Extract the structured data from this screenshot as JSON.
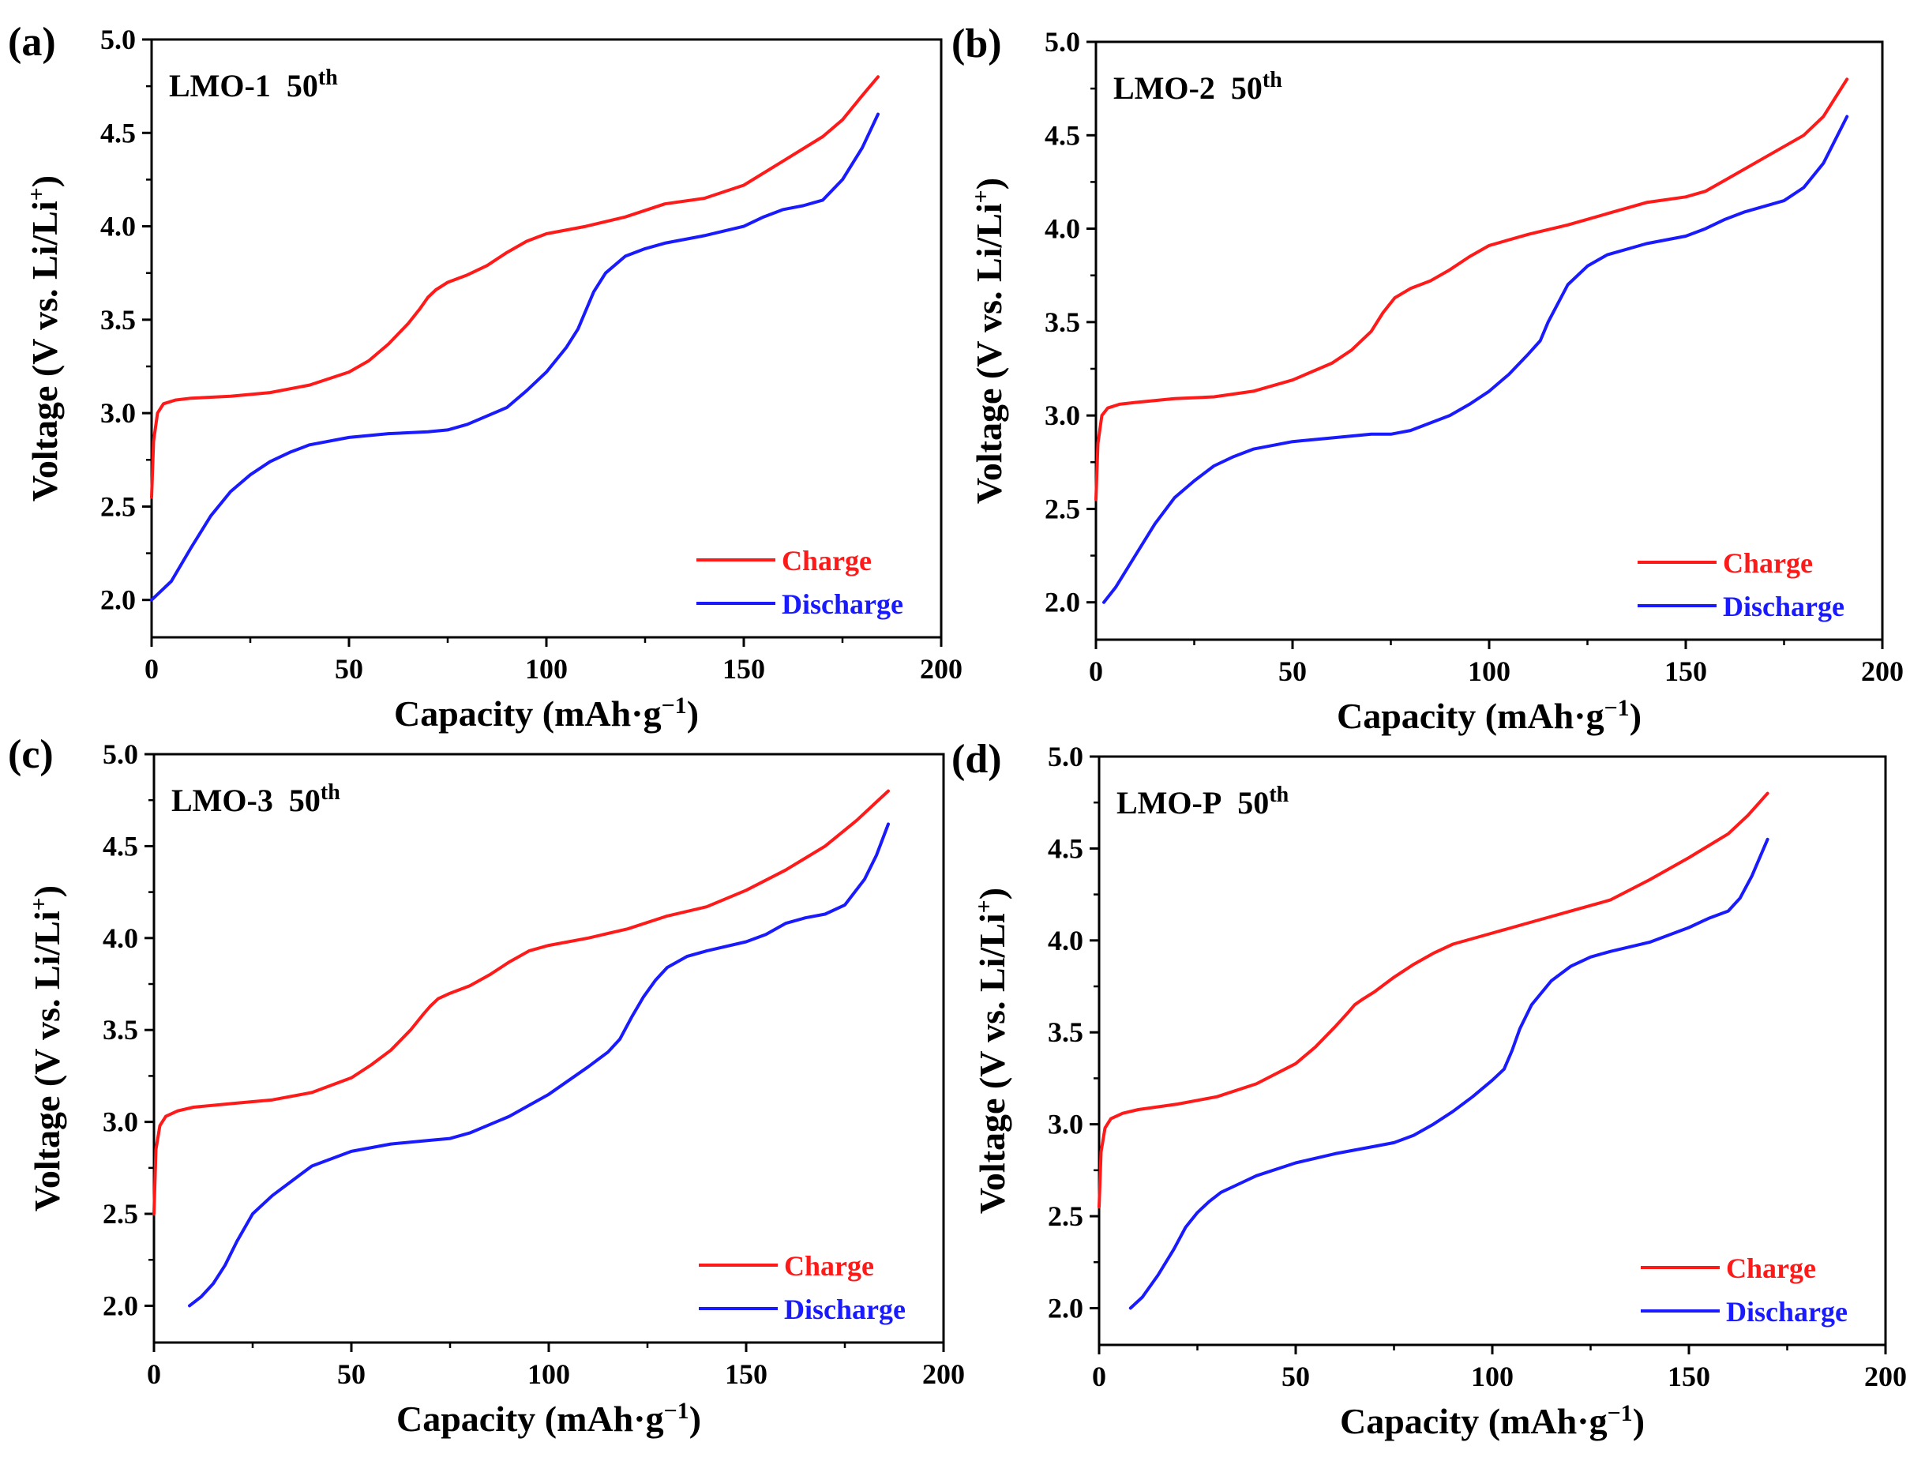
{
  "figure": {
    "series_style": {
      "charge_color": "#ff1a1a",
      "discharge_color": "#1a1aff"
    }
  },
  "chart_data": [
    {
      "type": "line",
      "panel": "(a)",
      "sample": "LMO-1",
      "cycle": "50",
      "cycle_sup": "th",
      "xlabel": "Capacity (mAh·g",
      "xlabel_sup": "−1",
      "xlabel_close": ")",
      "ylabel": "Voltage (V vs. Li/Li",
      "ylabel_sup": "+",
      "ylabel_close": ")",
      "xlim": [
        0,
        200
      ],
      "ylim": [
        1.8,
        5.0
      ],
      "xticks": [
        0,
        50,
        100,
        150,
        200
      ],
      "xtick_labels": [
        "0",
        "50",
        "100",
        "150",
        "200"
      ],
      "yticks": [
        2.0,
        2.5,
        3.0,
        3.5,
        4.0,
        4.5,
        5.0
      ],
      "ytick_labels": [
        "2.0",
        "2.5",
        "3.0",
        "3.5",
        "4.0",
        "4.5",
        "5.0"
      ],
      "legend": [
        "Charge",
        "Discharge"
      ],
      "legend_position": "bottom-right",
      "series": [
        {
          "name": "Charge",
          "x": [
            0,
            0.5,
            1.5,
            3,
            6,
            10,
            20,
            30,
            40,
            50,
            55,
            60,
            65,
            68,
            70,
            72,
            75,
            80,
            85,
            90,
            95,
            100,
            110,
            120,
            130,
            140,
            150,
            160,
            170,
            175,
            180,
            184
          ],
          "y": [
            2.55,
            2.85,
            3.0,
            3.05,
            3.07,
            3.08,
            3.09,
            3.11,
            3.15,
            3.22,
            3.28,
            3.37,
            3.48,
            3.56,
            3.62,
            3.66,
            3.7,
            3.74,
            3.79,
            3.86,
            3.92,
            3.96,
            4.0,
            4.05,
            4.12,
            4.15,
            4.22,
            4.35,
            4.48,
            4.57,
            4.7,
            4.8
          ]
        },
        {
          "name": "Discharge",
          "x": [
            0,
            5,
            10,
            15,
            20,
            25,
            30,
            35,
            40,
            50,
            60,
            70,
            75,
            80,
            90,
            95,
            100,
            105,
            108,
            110,
            112,
            115,
            120,
            125,
            130,
            140,
            150,
            155,
            160,
            165,
            170,
            175,
            180,
            184
          ],
          "y": [
            2.0,
            2.1,
            2.28,
            2.45,
            2.58,
            2.67,
            2.74,
            2.79,
            2.83,
            2.87,
            2.89,
            2.9,
            2.91,
            2.94,
            3.03,
            3.12,
            3.22,
            3.35,
            3.45,
            3.55,
            3.65,
            3.75,
            3.84,
            3.88,
            3.91,
            3.95,
            4.0,
            4.05,
            4.09,
            4.11,
            4.14,
            4.25,
            4.42,
            4.6
          ]
        }
      ]
    },
    {
      "type": "line",
      "panel": "(b)",
      "sample": "LMO-2",
      "cycle": "50",
      "cycle_sup": "th",
      "xlabel": "Capacity (mAh·g",
      "xlabel_sup": "−1",
      "xlabel_close": ")",
      "ylabel": "Voltage (V vs. Li/Li",
      "ylabel_sup": "+",
      "ylabel_close": ")",
      "xlim": [
        0,
        200
      ],
      "ylim": [
        1.8,
        5.0
      ],
      "xticks": [
        0,
        50,
        100,
        150,
        200
      ],
      "xtick_labels": [
        "0",
        "50",
        "100",
        "150",
        "200"
      ],
      "yticks": [
        2.0,
        2.5,
        3.0,
        3.5,
        4.0,
        4.5,
        5.0
      ],
      "ytick_labels": [
        "2.0",
        "2.5",
        "3.0",
        "3.5",
        "4.0",
        "4.5",
        "5.0"
      ],
      "legend": [
        "Charge",
        "Discharge"
      ],
      "legend_position": "bottom-right",
      "series": [
        {
          "name": "Charge",
          "x": [
            0,
            0.5,
            1.5,
            3,
            6,
            10,
            20,
            30,
            40,
            50,
            60,
            65,
            70,
            73,
            76,
            80,
            85,
            90,
            95,
            100,
            110,
            120,
            130,
            140,
            150,
            155,
            160,
            170,
            180,
            185,
            188,
            191
          ],
          "y": [
            2.55,
            2.85,
            3.0,
            3.04,
            3.06,
            3.07,
            3.09,
            3.1,
            3.13,
            3.19,
            3.28,
            3.35,
            3.45,
            3.55,
            3.63,
            3.68,
            3.72,
            3.78,
            3.85,
            3.91,
            3.97,
            4.02,
            4.08,
            4.14,
            4.17,
            4.2,
            4.26,
            4.38,
            4.5,
            4.6,
            4.7,
            4.8
          ]
        },
        {
          "name": "Discharge",
          "x": [
            2,
            5,
            10,
            15,
            20,
            25,
            30,
            35,
            40,
            50,
            60,
            70,
            75,
            80,
            90,
            95,
            100,
            105,
            110,
            113,
            115,
            118,
            120,
            125,
            130,
            140,
            150,
            155,
            160,
            165,
            170,
            175,
            180,
            185,
            191
          ],
          "y": [
            2.0,
            2.08,
            2.25,
            2.42,
            2.56,
            2.65,
            2.73,
            2.78,
            2.82,
            2.86,
            2.88,
            2.9,
            2.9,
            2.92,
            3.0,
            3.06,
            3.13,
            3.22,
            3.33,
            3.4,
            3.5,
            3.62,
            3.7,
            3.8,
            3.86,
            3.92,
            3.96,
            4.0,
            4.05,
            4.09,
            4.12,
            4.15,
            4.22,
            4.35,
            4.6
          ]
        }
      ]
    },
    {
      "type": "line",
      "panel": "(c)",
      "sample": "LMO-3",
      "cycle": "50",
      "cycle_sup": "th",
      "xlabel": "Capacity (mAh·g",
      "xlabel_sup": "−1",
      "xlabel_close": ")",
      "ylabel": "Voltage (V vs. Li/Li",
      "ylabel_sup": "+",
      "ylabel_close": ")",
      "xlim": [
        0,
        200
      ],
      "ylim": [
        1.8,
        5.0
      ],
      "xticks": [
        0,
        50,
        100,
        150,
        200
      ],
      "xtick_labels": [
        "0",
        "50",
        "100",
        "150",
        "200"
      ],
      "yticks": [
        2.0,
        2.5,
        3.0,
        3.5,
        4.0,
        4.5,
        5.0
      ],
      "ytick_labels": [
        "2.0",
        "2.5",
        "3.0",
        "3.5",
        "4.0",
        "4.5",
        "5.0"
      ],
      "legend": [
        "Charge",
        "Discharge"
      ],
      "legend_position": "bottom-right",
      "series": [
        {
          "name": "Charge",
          "x": [
            0,
            0.5,
            1.5,
            3,
            6,
            10,
            20,
            30,
            40,
            50,
            55,
            60,
            65,
            68,
            70,
            72,
            75,
            80,
            85,
            90,
            95,
            100,
            110,
            120,
            130,
            140,
            150,
            160,
            170,
            178,
            183,
            186
          ],
          "y": [
            2.5,
            2.85,
            2.98,
            3.03,
            3.06,
            3.08,
            3.1,
            3.12,
            3.16,
            3.24,
            3.31,
            3.39,
            3.5,
            3.58,
            3.63,
            3.67,
            3.7,
            3.74,
            3.8,
            3.87,
            3.93,
            3.96,
            4.0,
            4.05,
            4.12,
            4.17,
            4.26,
            4.37,
            4.5,
            4.64,
            4.74,
            4.8
          ]
        },
        {
          "name": "Discharge",
          "x": [
            9,
            12,
            15,
            18,
            21,
            25,
            30,
            35,
            40,
            50,
            60,
            70,
            75,
            80,
            90,
            100,
            110,
            115,
            118,
            121,
            124,
            127,
            130,
            135,
            140,
            150,
            155,
            160,
            165,
            170,
            175,
            180,
            183,
            186
          ],
          "y": [
            2.0,
            2.05,
            2.12,
            2.22,
            2.35,
            2.5,
            2.6,
            2.68,
            2.76,
            2.84,
            2.88,
            2.9,
            2.91,
            2.94,
            3.03,
            3.15,
            3.3,
            3.38,
            3.45,
            3.57,
            3.68,
            3.77,
            3.84,
            3.9,
            3.93,
            3.98,
            4.02,
            4.08,
            4.11,
            4.13,
            4.18,
            4.32,
            4.45,
            4.62
          ]
        }
      ]
    },
    {
      "type": "line",
      "panel": "(d)",
      "sample": "LMO-P",
      "cycle": "50",
      "cycle_sup": "th",
      "xlabel": "Capacity (mAh·g",
      "xlabel_sup": "−1",
      "xlabel_close": ")",
      "ylabel": "Voltage (V vs. Li/Li",
      "ylabel_sup": "+",
      "ylabel_close": ")",
      "xlim": [
        0,
        200
      ],
      "ylim": [
        1.8,
        5.0
      ],
      "xticks": [
        0,
        50,
        100,
        150,
        200
      ],
      "xtick_labels": [
        "0",
        "50",
        "100",
        "150",
        "200"
      ],
      "yticks": [
        2.0,
        2.5,
        3.0,
        3.5,
        4.0,
        4.5,
        5.0
      ],
      "ytick_labels": [
        "2.0",
        "2.5",
        "3.0",
        "3.5",
        "4.0",
        "4.5",
        "5.0"
      ],
      "legend": [
        "Charge",
        "Discharge"
      ],
      "legend_position": "bottom-right",
      "series": [
        {
          "name": "Charge",
          "x": [
            0,
            0.5,
            1.5,
            3,
            6,
            10,
            20,
            30,
            40,
            50,
            55,
            60,
            63,
            65,
            67,
            70,
            75,
            80,
            85,
            90,
            95,
            100,
            110,
            120,
            130,
            140,
            150,
            160,
            165,
            170
          ],
          "y": [
            2.55,
            2.85,
            2.98,
            3.03,
            3.06,
            3.08,
            3.11,
            3.15,
            3.22,
            3.33,
            3.42,
            3.53,
            3.6,
            3.65,
            3.68,
            3.72,
            3.8,
            3.87,
            3.93,
            3.98,
            4.01,
            4.04,
            4.1,
            4.16,
            4.22,
            4.33,
            4.45,
            4.58,
            4.68,
            4.8
          ]
        },
        {
          "name": "Discharge",
          "x": [
            8,
            11,
            15,
            19,
            22,
            25,
            28,
            31,
            35,
            40,
            50,
            60,
            70,
            75,
            80,
            85,
            90,
            95,
            100,
            103,
            105,
            107,
            110,
            115,
            120,
            125,
            130,
            140,
            150,
            155,
            160,
            163,
            166,
            170
          ],
          "y": [
            2.0,
            2.06,
            2.18,
            2.32,
            2.44,
            2.52,
            2.58,
            2.63,
            2.67,
            2.72,
            2.79,
            2.84,
            2.88,
            2.9,
            2.94,
            3.0,
            3.07,
            3.15,
            3.24,
            3.3,
            3.4,
            3.52,
            3.65,
            3.78,
            3.86,
            3.91,
            3.94,
            3.99,
            4.07,
            4.12,
            4.16,
            4.23,
            4.35,
            4.55
          ]
        }
      ]
    }
  ]
}
